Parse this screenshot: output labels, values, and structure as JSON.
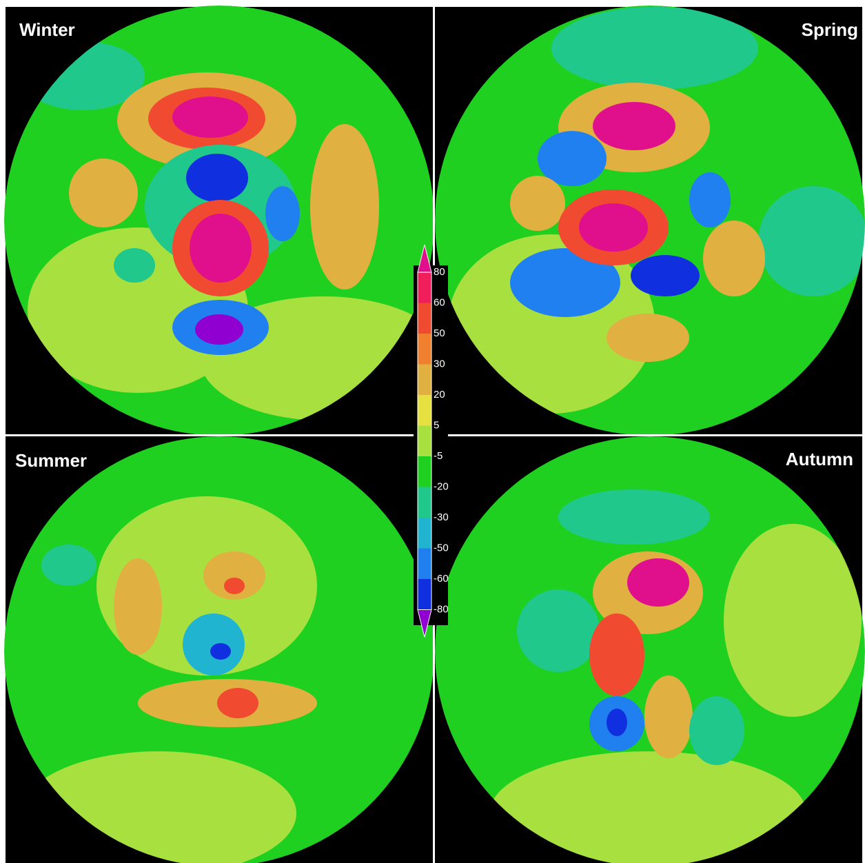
{
  "panels": [
    {
      "title": "Winter"
    },
    {
      "title": "Spring"
    },
    {
      "title": "Summer"
    },
    {
      "title": "Autumn"
    }
  ],
  "colorbar": {
    "labels": [
      80,
      60,
      50,
      30,
      20,
      5,
      -5,
      -20,
      -30,
      -50,
      -60,
      -80
    ],
    "colors": [
      "#e0108c",
      "#f01e5a",
      "#f04a30",
      "#f08030",
      "#e0b040",
      "#e6e040",
      "#a8e040",
      "#20d020",
      "#20c88c",
      "#20b4d0",
      "#2080f0",
      "#1030e0",
      "#9000d0"
    ]
  }
}
